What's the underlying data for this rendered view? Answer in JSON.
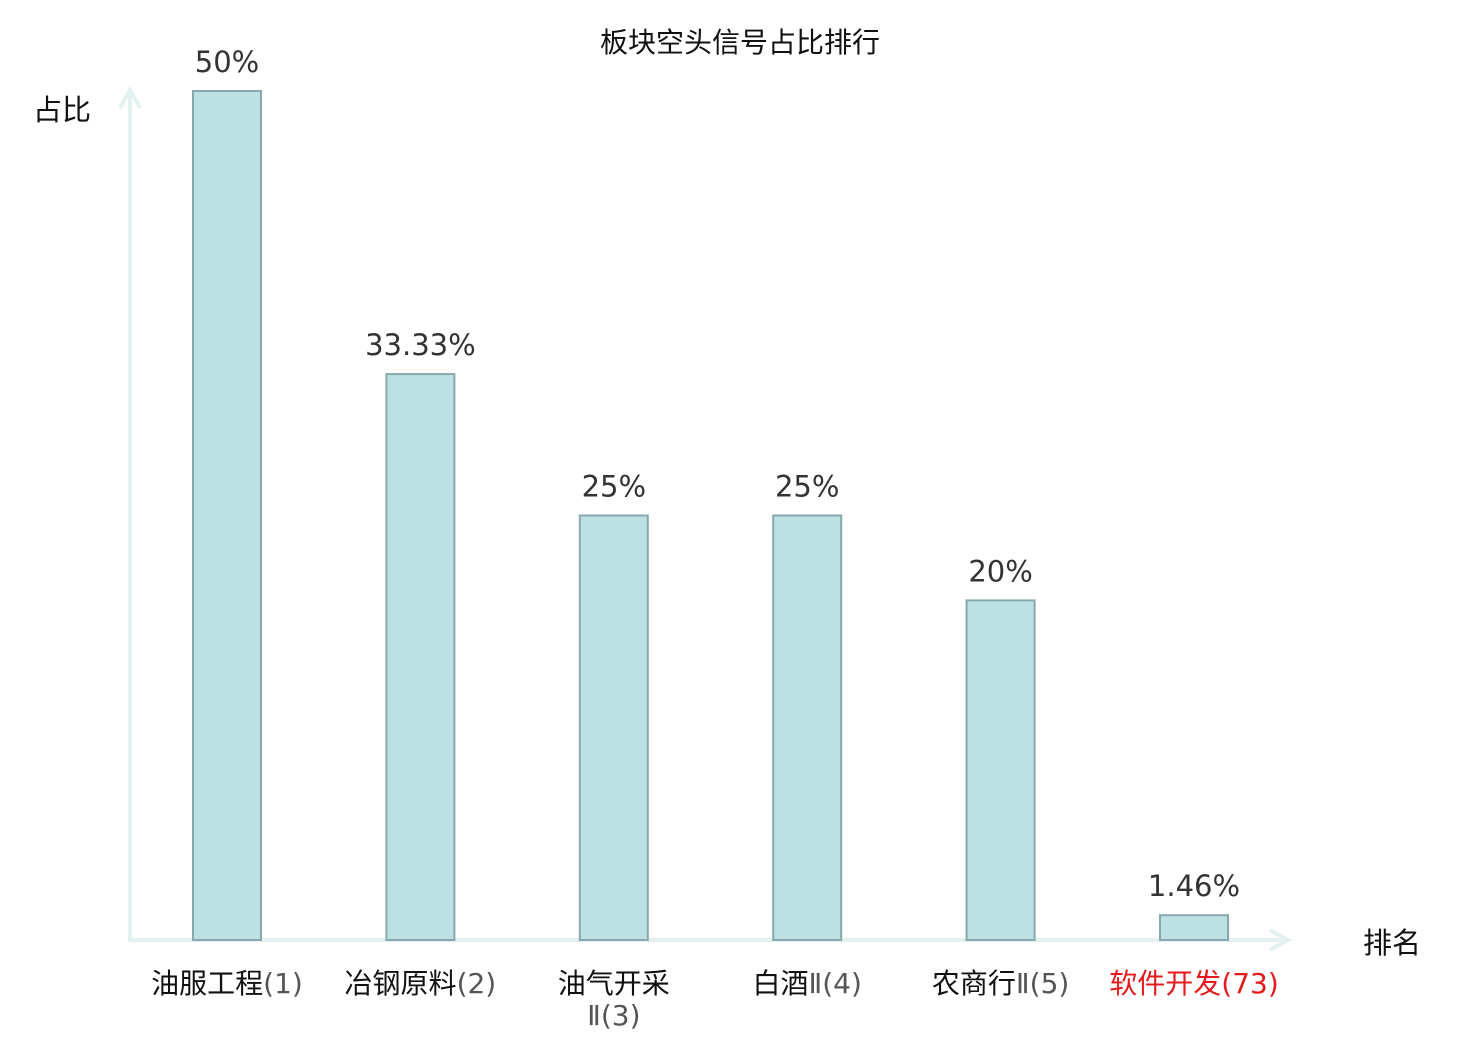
{
  "chart_data": {
    "type": "bar",
    "title": "板块空头信号占比排行",
    "ylabel": "占比",
    "xlabel": "排名",
    "categories": [
      {
        "name": "油服工程",
        "rank": "(1)",
        "highlight": false
      },
      {
        "name": "冶钢原料",
        "rank": "(2)",
        "highlight": false
      },
      {
        "name": "油气开采",
        "rank": "Ⅱ(3)",
        "highlight": false
      },
      {
        "name": "白酒",
        "rank": "Ⅱ(4)",
        "highlight": false
      },
      {
        "name": "农商行",
        "rank": "Ⅱ(5)",
        "highlight": false
      },
      {
        "name": "软件开发",
        "rank": "(73)",
        "highlight": true
      }
    ],
    "values": [
      50,
      33.33,
      25,
      25,
      20,
      1.46
    ],
    "value_labels": [
      "50%",
      "33.33%",
      "25%",
      "25%",
      "20%",
      "1.46%"
    ],
    "ylim": [
      0,
      50
    ],
    "grid": false,
    "legend": "none",
    "colors": {
      "bar_fill": "#bde0e2",
      "bar_stroke": "#86a9ad",
      "axis": "#e3f2f1",
      "highlight_label": "#e41a1c"
    }
  }
}
